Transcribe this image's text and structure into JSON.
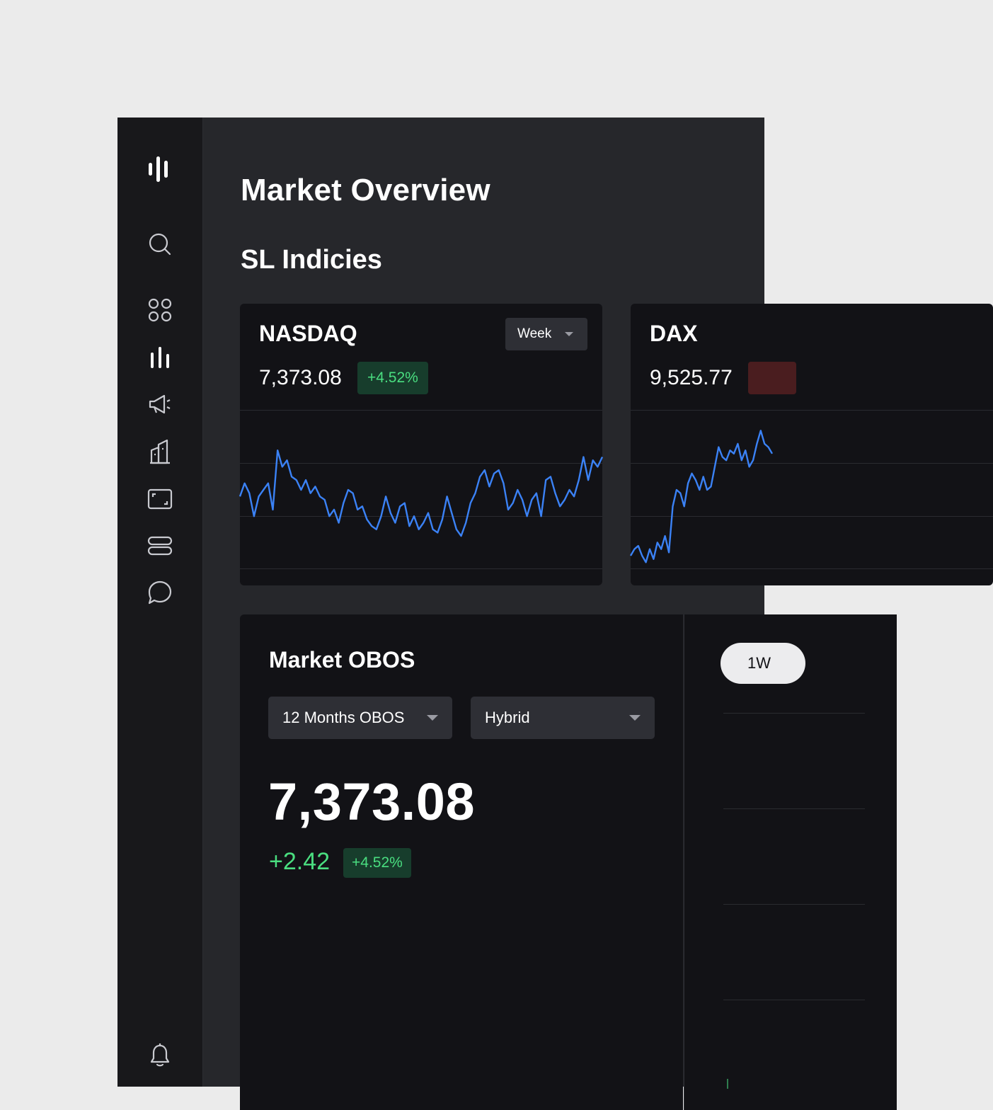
{
  "sidebar": {
    "icons": [
      "logo-icon",
      "search-icon",
      "apps-grid-icon",
      "chart-bars-icon",
      "megaphone-icon",
      "buildings-icon",
      "screen-frame-icon",
      "storage-icon",
      "chat-icon",
      "bell-icon"
    ],
    "active": "chart-bars-icon"
  },
  "page": {
    "title": "Market Overview",
    "section_title": "SL Indicies"
  },
  "indices": [
    {
      "name": "NASDAQ",
      "price": "7,373.08",
      "change_pct": "+4.52%",
      "direction": "up",
      "period": "Week"
    },
    {
      "name": "DAX",
      "price": "9,525.77",
      "change_pct": "",
      "direction": "down"
    }
  ],
  "chart_data": [
    {
      "type": "line",
      "series": [
        {
          "values": [
            58,
            62,
            59,
            52,
            58,
            60,
            62,
            54,
            72,
            67,
            69,
            64,
            63,
            60,
            63,
            59,
            61,
            58,
            57,
            52,
            54,
            50,
            56,
            60,
            59,
            54,
            55,
            51,
            49,
            48,
            52,
            58,
            53,
            50,
            55,
            56,
            49,
            52,
            48,
            50,
            53,
            48,
            47,
            51,
            58,
            53,
            48,
            46,
            50,
            56,
            59,
            64,
            66,
            61,
            65,
            66,
            62,
            54,
            56,
            60,
            57,
            52,
            57,
            59,
            52,
            63,
            64,
            59,
            55,
            57,
            60,
            58,
            63,
            70,
            63,
            69,
            67,
            70
          ]
        }
      ],
      "grid": true,
      "line_color": "#3b82f6"
    },
    {
      "type": "line",
      "series": [
        {
          "values": [
            40,
            42,
            43,
            40,
            38,
            42,
            39,
            44,
            42,
            46,
            41,
            55,
            60,
            59,
            55,
            62,
            65,
            63,
            60,
            64,
            60,
            61,
            67,
            73,
            70,
            69,
            72,
            71,
            74,
            69,
            72,
            67,
            69,
            74,
            78,
            74,
            73,
            71
          ]
        }
      ],
      "grid": true,
      "line_color": "#3b82f6"
    }
  ],
  "obos": {
    "title": "Market OBOS",
    "period_select": "12 Months OBOS",
    "type_select": "Hybrid",
    "value": "7,373.08",
    "abs_change": "+2.42",
    "pct_change": "+4.52%"
  },
  "timeframe": {
    "selected": "1W"
  },
  "colors": {
    "accent_line": "#3b82f6",
    "positive": "#4ade80",
    "negative": "#f87171"
  }
}
